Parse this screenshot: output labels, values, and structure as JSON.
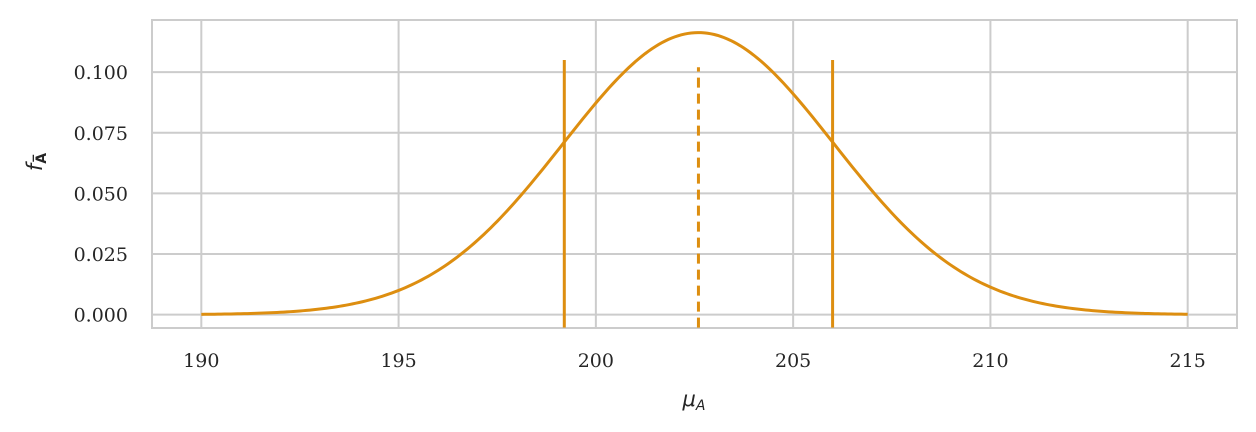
{
  "chart_data": {
    "type": "line",
    "xlabel": "μ_A",
    "ylabel": "f_Ā",
    "xlim": [
      188.75,
      216.25
    ],
    "ylim": [
      -0.0055,
      0.1215
    ],
    "grid": true,
    "x_ticks": [
      190,
      195,
      200,
      205,
      210,
      215
    ],
    "x_tick_labels": [
      "190",
      "195",
      "200",
      "205",
      "210",
      "215"
    ],
    "y_ticks": [
      0.0,
      0.025,
      0.05,
      0.075,
      0.1
    ],
    "y_tick_labels": [
      "0.000",
      "0.025",
      "0.050",
      "0.075",
      "0.100"
    ],
    "curve": {
      "distribution": "normal",
      "mean": 202.6,
      "sd": 3.43,
      "x_min": 190,
      "x_max": 215
    },
    "vlines": [
      {
        "x": 199.2,
        "y_top": 0.105,
        "style": "solid"
      },
      {
        "x": 202.6,
        "y_top": 0.102,
        "style": "dashed"
      },
      {
        "x": 206.0,
        "y_top": 0.105,
        "style": "solid"
      }
    ],
    "color": "#dd8e10"
  }
}
